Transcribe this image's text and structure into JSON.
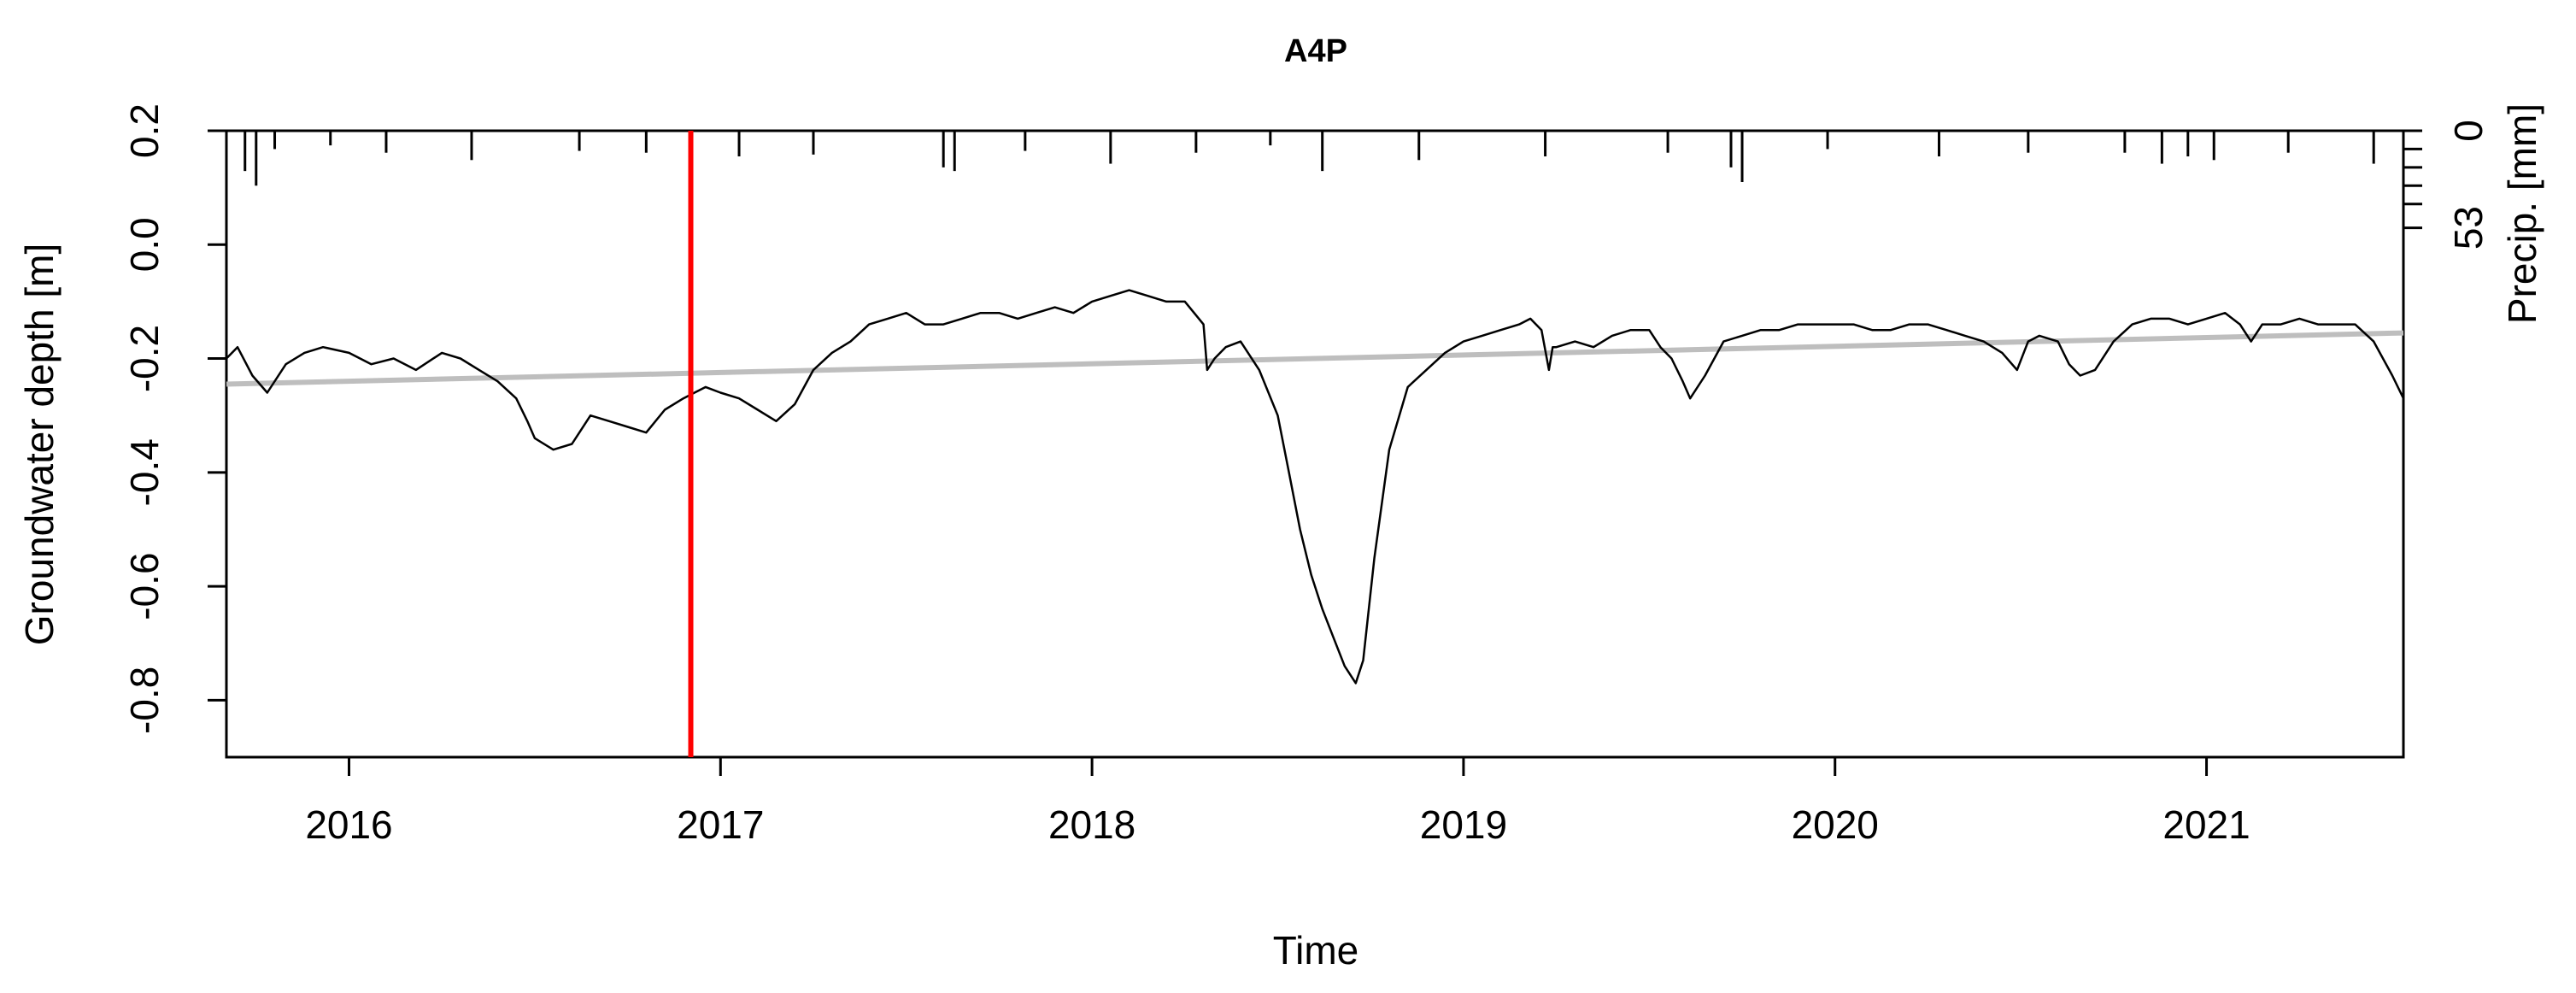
{
  "chart_data": {
    "type": "line",
    "title": "A4P",
    "xlabel": "Time",
    "ylabel": "Groundwater depth [m]",
    "ylabel_right": "Precip. [mm]",
    "xlim": [
      2015.67,
      2021.53
    ],
    "ylim": [
      -0.9,
      0.2
    ],
    "x_ticks": [
      2016,
      2017,
      2018,
      2019,
      2020,
      2021
    ],
    "x_tick_labels": [
      "2016",
      "2017",
      "2018",
      "2019",
      "2020",
      "2021"
    ],
    "y_ticks": [
      0.2,
      0.0,
      -0.2,
      -0.4,
      -0.6,
      -0.8
    ],
    "y_tick_labels": [
      "0.2",
      "0.0",
      "-0.2",
      "-0.4",
      "-0.6",
      "-0.8"
    ],
    "precip_ticks": [
      0,
      53
    ],
    "precip_tick_labels": [
      "0",
      "53"
    ],
    "precip_max": 70,
    "grid": false,
    "colors": {
      "groundwater": "#000000",
      "trend": "#bebebe",
      "marker": "#ff0000",
      "precip": "#000000"
    },
    "marker_x": 2016.92,
    "series": [
      {
        "role": "groundwater",
        "x": [
          2015.67,
          2015.7,
          2015.74,
          2015.78,
          2015.83,
          2015.88,
          2015.93,
          2016.0,
          2016.06,
          2016.12,
          2016.18,
          2016.25,
          2016.3,
          2016.35,
          2016.4,
          2016.45,
          2016.48,
          2016.5,
          2016.55,
          2016.6,
          2016.65,
          2016.7,
          2016.75,
          2016.8,
          2016.85,
          2016.9,
          2016.93,
          2016.96,
          2017.0,
          2017.05,
          2017.1,
          2017.15,
          2017.2,
          2017.25,
          2017.3,
          2017.35,
          2017.4,
          2017.45,
          2017.5,
          2017.55,
          2017.6,
          2017.65,
          2017.7,
          2017.75,
          2017.8,
          2017.85,
          2017.9,
          2017.95,
          2018.0,
          2018.05,
          2018.1,
          2018.15,
          2018.2,
          2018.25,
          2018.3,
          2018.31,
          2018.33,
          2018.36,
          2018.4,
          2018.45,
          2018.5,
          2018.53,
          2018.56,
          2018.59,
          2018.62,
          2018.65,
          2018.68,
          2018.71,
          2018.73,
          2018.76,
          2018.8,
          2018.85,
          2018.9,
          2018.95,
          2019.0,
          2019.05,
          2019.1,
          2019.15,
          2019.18,
          2019.21,
          2019.23,
          2019.24,
          2019.25,
          2019.3,
          2019.35,
          2019.4,
          2019.45,
          2019.5,
          2019.53,
          2019.56,
          2019.59,
          2019.61,
          2019.65,
          2019.7,
          2019.75,
          2019.8,
          2019.85,
          2019.9,
          2019.95,
          2020.0,
          2020.05,
          2020.1,
          2020.15,
          2020.2,
          2020.25,
          2020.3,
          2020.35,
          2020.4,
          2020.45,
          2020.49,
          2020.52,
          2020.55,
          2020.6,
          2020.63,
          2020.66,
          2020.7,
          2020.75,
          2020.8,
          2020.85,
          2020.9,
          2020.95,
          2021.0,
          2021.05,
          2021.09,
          2021.12,
          2021.15,
          2021.2,
          2021.25,
          2021.3,
          2021.35,
          2021.4,
          2021.45,
          2021.5,
          2021.53
        ],
        "y": [
          -0.2,
          -0.18,
          -0.23,
          -0.26,
          -0.21,
          -0.19,
          -0.18,
          -0.19,
          -0.21,
          -0.2,
          -0.22,
          -0.19,
          -0.2,
          -0.22,
          -0.24,
          -0.27,
          -0.31,
          -0.34,
          -0.36,
          -0.35,
          -0.3,
          -0.31,
          -0.32,
          -0.33,
          -0.29,
          -0.27,
          -0.26,
          -0.25,
          -0.26,
          -0.27,
          -0.29,
          -0.31,
          -0.28,
          -0.22,
          -0.19,
          -0.17,
          -0.14,
          -0.13,
          -0.12,
          -0.14,
          -0.14,
          -0.13,
          -0.12,
          -0.12,
          -0.13,
          -0.12,
          -0.11,
          -0.12,
          -0.1,
          -0.09,
          -0.08,
          -0.09,
          -0.1,
          -0.1,
          -0.14,
          -0.22,
          -0.2,
          -0.18,
          -0.17,
          -0.22,
          -0.3,
          -0.4,
          -0.5,
          -0.58,
          -0.64,
          -0.69,
          -0.74,
          -0.77,
          -0.73,
          -0.55,
          -0.36,
          -0.25,
          -0.22,
          -0.19,
          -0.17,
          -0.16,
          -0.15,
          -0.14,
          -0.13,
          -0.15,
          -0.22,
          -0.18,
          -0.18,
          -0.17,
          -0.18,
          -0.16,
          -0.15,
          -0.15,
          -0.18,
          -0.2,
          -0.24,
          -0.27,
          -0.23,
          -0.17,
          -0.16,
          -0.15,
          -0.15,
          -0.14,
          -0.14,
          -0.14,
          -0.14,
          -0.15,
          -0.15,
          -0.14,
          -0.14,
          -0.15,
          -0.16,
          -0.17,
          -0.19,
          -0.22,
          -0.17,
          -0.16,
          -0.17,
          -0.21,
          -0.23,
          -0.22,
          -0.17,
          -0.14,
          -0.13,
          -0.13,
          -0.14,
          -0.13,
          -0.12,
          -0.14,
          -0.17,
          -0.14,
          -0.14,
          -0.13,
          -0.14,
          -0.14,
          -0.14,
          -0.17,
          -0.23,
          -0.27
        ]
      },
      {
        "role": "trend",
        "x": [
          2015.67,
          2021.53
        ],
        "y": [
          -0.245,
          -0.155
        ]
      },
      {
        "role": "precip",
        "x": [
          2015.72,
          2015.75,
          2015.8,
          2015.95,
          2016.1,
          2016.33,
          2016.62,
          2016.8,
          2017.05,
          2017.25,
          2017.6,
          2017.63,
          2017.82,
          2018.05,
          2018.28,
          2018.48,
          2018.62,
          2018.88,
          2019.22,
          2019.55,
          2019.72,
          2019.75,
          2019.98,
          2020.28,
          2020.52,
          2020.78,
          2020.88,
          2020.95,
          2021.02,
          2021.22,
          2021.45
        ],
        "y": [
          22,
          30,
          10,
          8,
          12,
          16,
          11,
          12,
          14,
          13,
          20,
          22,
          11,
          18,
          12,
          8,
          22,
          16,
          14,
          12,
          20,
          28,
          10,
          14,
          12,
          12,
          18,
          14,
          16,
          12,
          18
        ]
      }
    ]
  }
}
